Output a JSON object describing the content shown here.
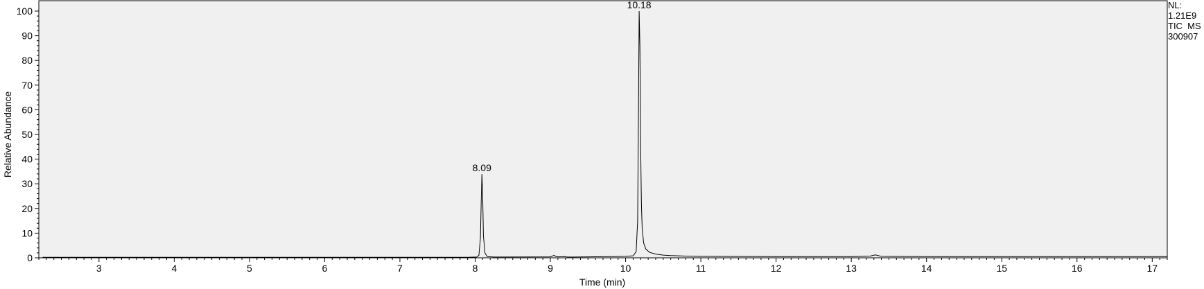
{
  "chart_data": {
    "type": "line",
    "title": "",
    "xlabel": "Time (min)",
    "ylabel": "Relative Abundance",
    "xlim": [
      2.2,
      17.2
    ],
    "ylim": [
      0,
      100
    ],
    "x_ticks": [
      3,
      4,
      5,
      6,
      7,
      8,
      9,
      10,
      11,
      12,
      13,
      14,
      15,
      16,
      17
    ],
    "y_ticks": [
      0,
      10,
      20,
      30,
      40,
      50,
      60,
      70,
      80,
      90,
      100
    ],
    "peak_labels": [
      {
        "x": 8.09,
        "y": 34,
        "text": "8.09"
      },
      {
        "x": 10.18,
        "y": 100,
        "text": "10.18"
      }
    ],
    "annotations": [
      "NL:",
      "1.21E9",
      "TIC  MS",
      "300907"
    ],
    "series": [
      {
        "x": [
          2.25,
          7.9,
          8.02,
          8.05,
          8.07,
          8.08,
          8.09,
          8.1,
          8.11,
          8.13,
          8.16,
          8.25,
          9.0,
          9.05,
          9.07,
          9.1,
          9.2,
          9.22,
          9.3,
          9.5,
          9.8,
          10.0,
          10.1,
          10.14,
          10.16,
          10.17,
          10.18,
          10.19,
          10.2,
          10.21,
          10.22,
          10.24,
          10.27,
          10.32,
          10.4,
          10.5,
          10.6,
          10.8,
          11.0,
          12.0,
          13.0,
          13.25,
          13.32,
          13.4,
          14.0,
          15.0,
          16.0,
          17.2
        ],
        "y": [
          0.2,
          0.2,
          0.3,
          1.0,
          8.0,
          22.0,
          34.0,
          25.0,
          9.0,
          2.0,
          0.5,
          0.3,
          0.4,
          1.0,
          0.6,
          0.4,
          0.5,
          0.3,
          0.3,
          0.4,
          0.5,
          0.6,
          0.8,
          2.5,
          15.0,
          55.0,
          100.0,
          86.0,
          45.0,
          22.0,
          12.0,
          6.0,
          3.5,
          2.2,
          1.5,
          1.1,
          0.9,
          0.7,
          0.6,
          0.5,
          0.5,
          0.7,
          1.2,
          0.6,
          0.5,
          0.5,
          0.5,
          0.5
        ]
      }
    ]
  }
}
